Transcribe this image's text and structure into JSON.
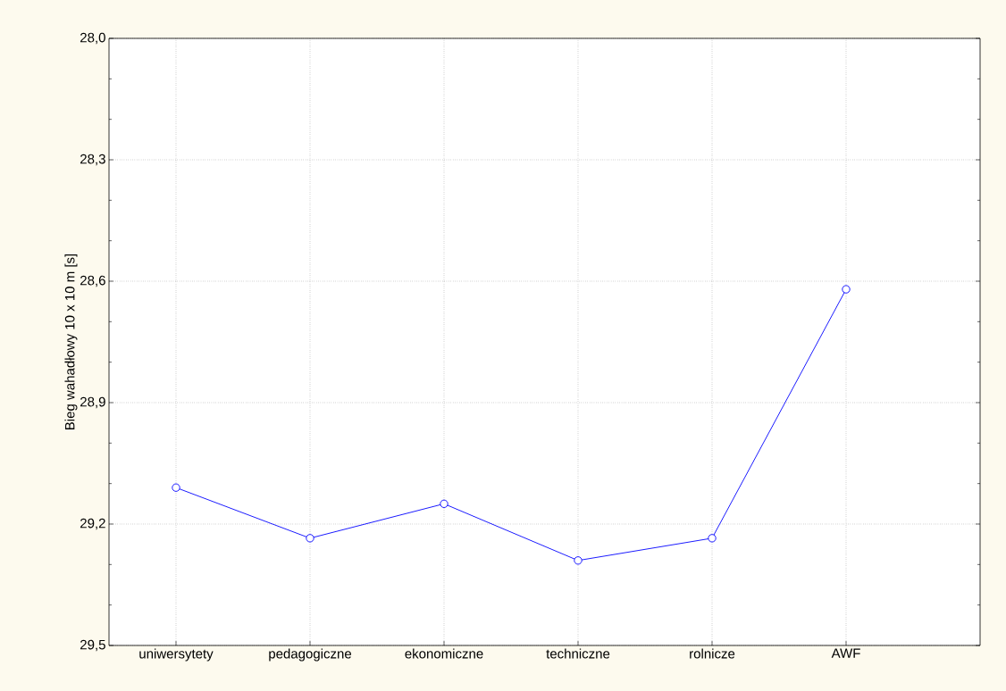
{
  "chart_data": {
    "type": "line",
    "ylabel": "Bieg wahadłowy 10 x 10 m [s]",
    "categories": [
      "uniwersytety",
      "pedagogiczne",
      "ekonomiczne",
      "techniczne",
      "rolnicze",
      "AWF"
    ],
    "series": [
      {
        "color": "#0000ff",
        "values": [
          29.11,
          29.235,
          29.15,
          29.29,
          29.235,
          28.62
        ]
      }
    ],
    "ylim": [
      29.5,
      28.0
    ],
    "yticks": [
      {
        "value": 28.0,
        "label": "28,0"
      },
      {
        "value": 28.3,
        "label": "28,3"
      },
      {
        "value": 28.6,
        "label": "28,6"
      },
      {
        "value": 28.9,
        "label": "28,9"
      },
      {
        "value": 29.2,
        "label": "29,2"
      },
      {
        "value": 29.5,
        "label": "29,5"
      }
    ],
    "grid": true,
    "marker": "circle",
    "line_style": "solid"
  }
}
